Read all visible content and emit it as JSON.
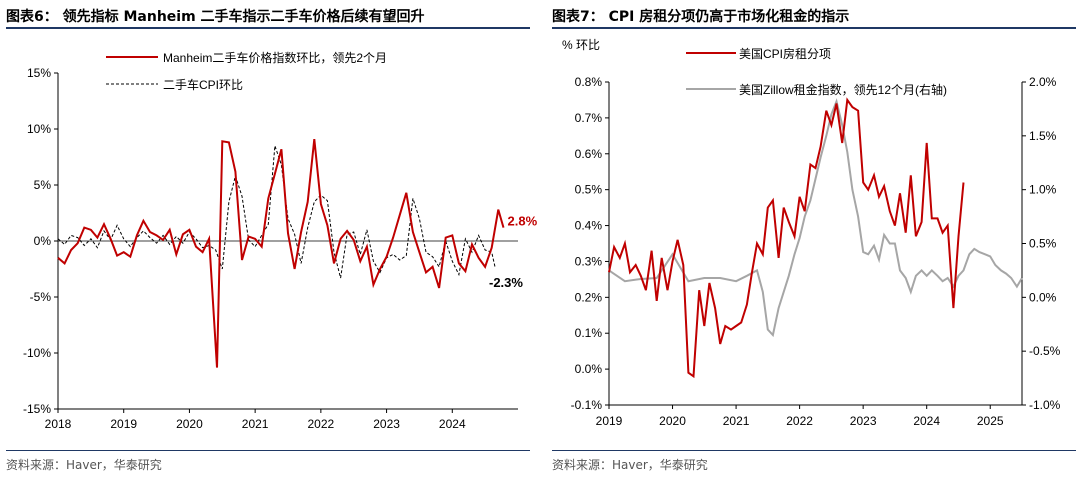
{
  "left": {
    "title": "图表6： 领先指标 Manheim 二手车指示二手车价格后续有望回升",
    "source": "资料来源：Haver，华泰研究"
  },
  "right": {
    "title": "图表7： CPI 房租分项仍高于市场化租金的指示",
    "source": "资料来源：Haver，华泰研究"
  },
  "colors": {
    "red": "#c00000",
    "gray": "#a6a6a6",
    "black": "#000000",
    "rule": "#1f3864"
  },
  "chart_data": [
    {
      "id": "left",
      "type": "line",
      "title": "领先指标 Manheim 二手车指示二手车价格后续有望回升",
      "ylim": [
        -15,
        15
      ],
      "y_ticks": [
        -15,
        -10,
        -5,
        0,
        5,
        10,
        15
      ],
      "y_tick_labels": [
        "-15%",
        "-10%",
        "-5%",
        "0%",
        "5%",
        "10%",
        "15%"
      ],
      "xlim": [
        2018.0,
        2025.0
      ],
      "x_ticks": [
        2018,
        2019,
        2020,
        2021,
        2022,
        2023,
        2024
      ],
      "x_tick_labels": [
        "2018",
        "2019",
        "2020",
        "2021",
        "2022",
        "2023",
        "2024"
      ],
      "legend": "top-left",
      "series": [
        {
          "name": "Manheim二手车价格指数环比，领先2个月",
          "color": "#c00000",
          "style": "solid",
          "x": [
            2018.0,
            2018.1,
            2018.2,
            2018.3,
            2018.4,
            2018.5,
            2018.6,
            2018.7,
            2018.8,
            2018.9,
            2019.0,
            2019.1,
            2019.2,
            2019.3,
            2019.4,
            2019.5,
            2019.6,
            2019.7,
            2019.8,
            2019.9,
            2020.0,
            2020.1,
            2020.2,
            2020.3,
            2020.42,
            2020.5,
            2020.6,
            2020.7,
            2020.8,
            2020.9,
            2021.0,
            2021.1,
            2021.2,
            2021.3,
            2021.4,
            2021.5,
            2021.6,
            2021.7,
            2021.8,
            2021.9,
            2022.0,
            2022.1,
            2022.2,
            2022.3,
            2022.4,
            2022.5,
            2022.6,
            2022.7,
            2022.8,
            2022.9,
            2023.0,
            2023.1,
            2023.2,
            2023.3,
            2023.4,
            2023.5,
            2023.6,
            2023.7,
            2023.8,
            2023.9,
            2024.0,
            2024.1,
            2024.2,
            2024.3,
            2024.4,
            2024.5,
            2024.6,
            2024.7,
            2024.78
          ],
          "values": [
            -1.5,
            -2.0,
            -0.8,
            -0.2,
            1.2,
            1.0,
            0.3,
            1.5,
            0.2,
            -1.3,
            -1.0,
            -1.4,
            0.5,
            1.8,
            0.8,
            0.5,
            0.1,
            1.0,
            -1.2,
            0.6,
            1.0,
            -0.5,
            -1.0,
            0.2,
            -11.3,
            8.9,
            8.8,
            6.2,
            -1.7,
            0.4,
            0.2,
            -0.5,
            3.8,
            6.0,
            8.2,
            0.7,
            -2.5,
            0.8,
            3.5,
            9.1,
            3.3,
            1.4,
            -2.0,
            0.2,
            0.9,
            0.1,
            -1.8,
            -0.5,
            -3.9,
            -2.5,
            -1.4,
            0.3,
            2.3,
            4.3,
            0.8,
            -1.0,
            -2.8,
            -2.3,
            -4.2,
            0.3,
            0.5,
            -2.0,
            -2.7,
            -0.3,
            -1.5,
            -2.3,
            -0.6,
            2.8,
            1.2
          ]
        },
        {
          "name": "二手车CPI环比",
          "color": "#000000",
          "style": "dashed",
          "x": [
            2018.0,
            2018.1,
            2018.2,
            2018.3,
            2018.4,
            2018.5,
            2018.6,
            2018.7,
            2018.8,
            2018.9,
            2019.0,
            2019.1,
            2019.2,
            2019.3,
            2019.4,
            2019.5,
            2019.6,
            2019.7,
            2019.8,
            2019.9,
            2020.0,
            2020.1,
            2020.2,
            2020.3,
            2020.4,
            2020.5,
            2020.6,
            2020.7,
            2020.8,
            2020.9,
            2021.0,
            2021.1,
            2021.2,
            2021.3,
            2021.4,
            2021.5,
            2021.6,
            2021.7,
            2021.8,
            2021.9,
            2022.0,
            2022.1,
            2022.2,
            2022.3,
            2022.4,
            2022.5,
            2022.6,
            2022.7,
            2022.8,
            2022.9,
            2023.0,
            2023.1,
            2023.2,
            2023.3,
            2023.4,
            2023.5,
            2023.6,
            2023.7,
            2023.8,
            2023.9,
            2024.0,
            2024.1,
            2024.2,
            2024.3,
            2024.4,
            2024.5,
            2024.6,
            2024.65
          ],
          "values": [
            0.2,
            -0.3,
            0.5,
            0.3,
            -0.4,
            0.2,
            -0.6,
            0.9,
            0.1,
            1.4,
            0.2,
            -0.5,
            0.3,
            0.9,
            0.3,
            -0.2,
            0.5,
            -0.3,
            0.4,
            -0.2,
            0.8,
            0.2,
            -0.6,
            -0.4,
            -0.8,
            -2.5,
            3.5,
            5.8,
            4.0,
            0.1,
            -0.5,
            0.5,
            1.5,
            8.5,
            6.8,
            2.0,
            0.6,
            -2.0,
            1.2,
            3.5,
            4.1,
            3.6,
            -1.0,
            -3.3,
            0.6,
            0.8,
            -1.2,
            1.0,
            -1.8,
            -2.8,
            -1.5,
            -1.2,
            -1.7,
            -1.3,
            3.8,
            2.0,
            -1.0,
            -1.4,
            -2.3,
            0.0,
            -1.8,
            -3.0,
            0.2,
            -1.0,
            0.5,
            -0.8,
            -1.0,
            -2.3
          ]
        }
      ],
      "annotations": [
        {
          "text": "2.8%",
          "x": 2024.78,
          "y": 2.8,
          "color": "#c00000"
        },
        {
          "text": "-2.3%",
          "x": 2024.65,
          "y": -2.3,
          "color": "#000000"
        }
      ]
    },
    {
      "id": "right",
      "type": "line",
      "title": "CPI 房租分项仍高于市场化租金的指示",
      "ylabel": "% 环比",
      "ylim": [
        -0.1,
        0.8
      ],
      "y_ticks": [
        -0.1,
        0.0,
        0.1,
        0.2,
        0.3,
        0.4,
        0.5,
        0.6,
        0.7,
        0.8
      ],
      "y_tick_labels": [
        "-0.1%",
        "0.0%",
        "0.1%",
        "0.2%",
        "0.3%",
        "0.4%",
        "0.5%",
        "0.6%",
        "0.7%",
        "0.8%"
      ],
      "y2lim": [
        -1.0,
        2.0
      ],
      "y2_ticks": [
        -1.0,
        -0.5,
        0.0,
        0.5,
        1.0,
        1.5,
        2.0
      ],
      "y2_tick_labels": [
        "-1.0%",
        "-0.5%",
        "0.0%",
        "0.5%",
        "1.0%",
        "1.5%",
        "2.0%"
      ],
      "xlim": [
        2019.0,
        2025.5
      ],
      "x_ticks": [
        2019,
        2020,
        2021,
        2022,
        2023,
        2024,
        2025
      ],
      "x_tick_labels": [
        "2019",
        "2020",
        "2021",
        "2022",
        "2023",
        "2024",
        "2025"
      ],
      "legend": "top-right",
      "series": [
        {
          "name": "美国CPI房租分项",
          "color": "#c00000",
          "axis": "left",
          "x": [
            2019.0,
            2019.08,
            2019.17,
            2019.25,
            2019.33,
            2019.42,
            2019.5,
            2019.58,
            2019.67,
            2019.75,
            2019.83,
            2019.92,
            2020.0,
            2020.08,
            2020.17,
            2020.25,
            2020.33,
            2020.42,
            2020.5,
            2020.58,
            2020.67,
            2020.75,
            2020.83,
            2020.92,
            2021.0,
            2021.08,
            2021.17,
            2021.25,
            2021.33,
            2021.42,
            2021.5,
            2021.58,
            2021.67,
            2021.75,
            2021.83,
            2021.92,
            2022.0,
            2022.08,
            2022.17,
            2022.25,
            2022.33,
            2022.42,
            2022.5,
            2022.58,
            2022.67,
            2022.75,
            2022.83,
            2022.92,
            2023.0,
            2023.08,
            2023.17,
            2023.25,
            2023.33,
            2023.42,
            2023.5,
            2023.58,
            2023.67,
            2023.75,
            2023.83,
            2023.92,
            2024.0,
            2024.08,
            2024.17,
            2024.25,
            2024.33,
            2024.42,
            2024.5,
            2024.58
          ],
          "values": [
            0.27,
            0.34,
            0.31,
            0.35,
            0.27,
            0.29,
            0.26,
            0.22,
            0.33,
            0.19,
            0.31,
            0.22,
            0.3,
            0.36,
            0.29,
            -0.01,
            -0.02,
            0.22,
            0.12,
            0.24,
            0.17,
            0.07,
            0.12,
            0.11,
            0.12,
            0.13,
            0.18,
            0.27,
            0.35,
            0.32,
            0.45,
            0.47,
            0.31,
            0.45,
            0.41,
            0.37,
            0.48,
            0.44,
            0.57,
            0.56,
            0.62,
            0.72,
            0.68,
            0.74,
            0.63,
            0.75,
            0.73,
            0.72,
            0.52,
            0.5,
            0.54,
            0.48,
            0.51,
            0.44,
            0.4,
            0.49,
            0.38,
            0.54,
            0.37,
            0.41,
            0.63,
            0.42,
            0.42,
            0.38,
            0.4,
            0.17,
            0.37,
            0.52
          ]
        },
        {
          "name": "美国Zillow租金指数，领先12个月(右轴)",
          "color": "#a6a6a6",
          "axis": "right",
          "x": [
            2019.0,
            2019.25,
            2019.5,
            2019.75,
            2020.0,
            2020.25,
            2020.5,
            2020.75,
            2021.0,
            2021.17,
            2021.33,
            2021.42,
            2021.5,
            2021.58,
            2021.67,
            2021.75,
            2021.83,
            2021.92,
            2022.0,
            2022.08,
            2022.17,
            2022.25,
            2022.33,
            2022.42,
            2022.5,
            2022.58,
            2022.67,
            2022.75,
            2022.83,
            2022.92,
            2023.0,
            2023.08,
            2023.17,
            2023.25,
            2023.33,
            2023.42,
            2023.5,
            2023.58,
            2023.67,
            2023.75,
            2023.83,
            2023.92,
            2024.0,
            2024.08,
            2024.17,
            2024.25,
            2024.33,
            2024.42,
            2024.5,
            2024.58,
            2024.67,
            2024.75,
            2024.83,
            2024.92,
            2025.0,
            2025.08,
            2025.17,
            2025.25,
            2025.33,
            2025.42,
            2025.5
          ],
          "values": [
            0.25,
            0.15,
            0.17,
            0.18,
            0.4,
            0.15,
            0.18,
            0.18,
            0.15,
            0.2,
            0.25,
            0.05,
            -0.3,
            -0.35,
            -0.1,
            0.05,
            0.2,
            0.4,
            0.55,
            0.75,
            0.9,
            1.1,
            1.3,
            1.5,
            1.7,
            1.82,
            1.6,
            1.35,
            1.0,
            0.75,
            0.42,
            0.4,
            0.48,
            0.35,
            0.58,
            0.5,
            0.5,
            0.25,
            0.18,
            0.05,
            0.2,
            0.25,
            0.2,
            0.25,
            0.2,
            0.15,
            0.18,
            0.1,
            0.2,
            0.25,
            0.4,
            0.45,
            0.42,
            0.4,
            0.38,
            0.3,
            0.25,
            0.22,
            0.18,
            0.1,
            0.18
          ]
        }
      ]
    }
  ]
}
